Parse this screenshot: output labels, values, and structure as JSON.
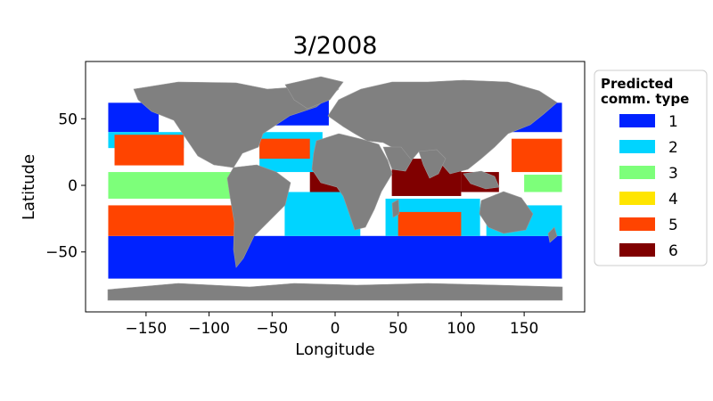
{
  "figure": {
    "title": "3/2008",
    "xlabel": "Longitude",
    "ylabel": "Latitude"
  },
  "chart_data": {
    "type": "scatter",
    "title": "3/2008",
    "xlabel": "Longitude",
    "ylabel": "Latitude",
    "xlim": [
      -198,
      198
    ],
    "ylim": [
      -95,
      93
    ],
    "x_ticks": [
      -150,
      -100,
      -50,
      0,
      50,
      100,
      150
    ],
    "x_tick_labels": [
      "−150",
      "−100",
      "−50",
      "0",
      "50",
      "100",
      "150"
    ],
    "y_ticks": [
      -50,
      0,
      50
    ],
    "y_tick_labels": [
      "−50",
      "0",
      "50"
    ],
    "grid": false,
    "legend_placement": "outside-right",
    "legend_title": "Predicted\ncomm. type",
    "categories": [
      {
        "label": "1",
        "color": "#0022ff"
      },
      {
        "label": "2",
        "color": "#00d4ff"
      },
      {
        "label": "3",
        "color": "#7dff7a"
      },
      {
        "label": "4",
        "color": "#ffe500"
      },
      {
        "label": "5",
        "color": "#ff4400"
      },
      {
        "label": "6",
        "color": "#800000"
      }
    ],
    "land_color": "#808080",
    "regions": [
      {
        "type": "1",
        "lon": [
          -180,
          180
        ],
        "lat": [
          -70,
          -38
        ]
      },
      {
        "type": "1",
        "lon": [
          -180,
          -140
        ],
        "lat": [
          40,
          62
        ]
      },
      {
        "type": "1",
        "lon": [
          -60,
          -5
        ],
        "lat": [
          45,
          68
        ]
      },
      {
        "type": "1",
        "lon": [
          140,
          180
        ],
        "lat": [
          40,
          62
        ]
      },
      {
        "type": "2",
        "lon": [
          -180,
          -120
        ],
        "lat": [
          28,
          40
        ]
      },
      {
        "type": "2",
        "lon": [
          -60,
          -10
        ],
        "lat": [
          10,
          40
        ]
      },
      {
        "type": "2",
        "lon": [
          -40,
          20
        ],
        "lat": [
          -38,
          -5
        ]
      },
      {
        "type": "2",
        "lon": [
          40,
          115
        ],
        "lat": [
          -38,
          -10
        ]
      },
      {
        "type": "2",
        "lon": [
          120,
          180
        ],
        "lat": [
          -38,
          -15
        ]
      },
      {
        "type": "3",
        "lon": [
          -180,
          -80
        ],
        "lat": [
          -10,
          10
        ]
      },
      {
        "type": "3",
        "lon": [
          150,
          180
        ],
        "lat": [
          -5,
          8
        ]
      },
      {
        "type": "5",
        "lon": [
          -175,
          -120
        ],
        "lat": [
          15,
          38
        ]
      },
      {
        "type": "5",
        "lon": [
          -180,
          -75
        ],
        "lat": [
          -38,
          -15
        ]
      },
      {
        "type": "5",
        "lon": [
          -60,
          -20
        ],
        "lat": [
          20,
          35
        ]
      },
      {
        "type": "5",
        "lon": [
          50,
          100
        ],
        "lat": [
          -38,
          -20
        ]
      },
      {
        "type": "5",
        "lon": [
          140,
          180
        ],
        "lat": [
          10,
          35
        ]
      },
      {
        "type": "6",
        "lon": [
          -20,
          10
        ],
        "lat": [
          -5,
          10
        ]
      },
      {
        "type": "6",
        "lon": [
          45,
          100
        ],
        "lat": [
          -8,
          20
        ]
      },
      {
        "type": "6",
        "lon": [
          100,
          130
        ],
        "lat": [
          -5,
          10
        ]
      }
    ]
  }
}
